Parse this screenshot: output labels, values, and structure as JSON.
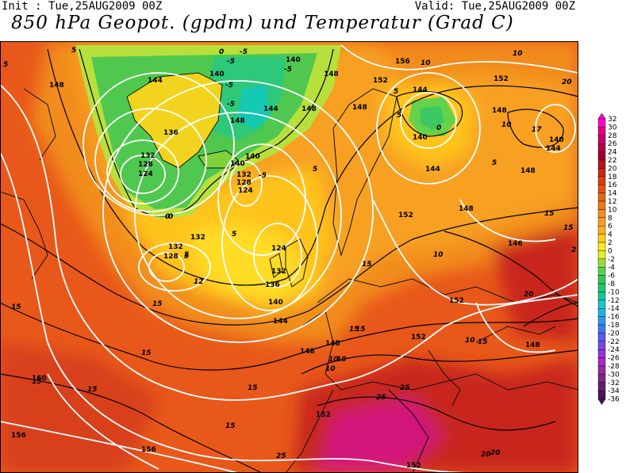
{
  "header": {
    "init": "Init : Tue,25AUG2009 00Z",
    "valid": "Valid: Tue,25AUG2009 00Z",
    "title": "850 hPa Geopot. (gpdm) und Temperatur (Grad C)"
  },
  "legend": {
    "ticks": [
      "32",
      "30",
      "28",
      "26",
      "24",
      "22",
      "20",
      "18",
      "16",
      "14",
      "12",
      "10",
      "8",
      "6",
      "4",
      "2",
      "0",
      "-2",
      "-4",
      "-6",
      "-8",
      "-10",
      "-12",
      "-14",
      "-16",
      "-18",
      "-20",
      "-22",
      "-24",
      "-26",
      "-28",
      "-30",
      "-32",
      "-34",
      "-36"
    ],
    "colors": [
      "#ff00cc",
      "#e6007e",
      "#c8006a",
      "#b40046",
      "#a00028",
      "#b4141e",
      "#c82814",
      "#dc3c0a",
      "#e6500a",
      "#eb6414",
      "#f07814",
      "#f58c1e",
      "#fa9b28",
      "#ffaf1e",
      "#ffcd14",
      "#ffe61e",
      "#e6f01e",
      "#96dc3c",
      "#5ad250",
      "#2dc85a",
      "#1ec873",
      "#14c896",
      "#14c8c8",
      "#1eb4e6",
      "#3296f0",
      "#3c78f0",
      "#5a5af0",
      "#7846e6",
      "#9632dc",
      "#aa28c8",
      "#9628a0",
      "#7d2887",
      "#641e6e",
      "#4b1455"
    ]
  },
  "geopotential_labels": [
    {
      "text": "148"
    },
    {
      "text": "144"
    },
    {
      "text": "140"
    },
    {
      "text": "136"
    },
    {
      "text": "132"
    },
    {
      "text": "128"
    },
    {
      "text": "124"
    },
    {
      "text": "140"
    },
    {
      "text": "148"
    },
    {
      "text": "144"
    },
    {
      "text": "140"
    },
    {
      "text": "132"
    },
    {
      "text": "128"
    },
    {
      "text": "124"
    },
    {
      "text": "140"
    },
    {
      "text": "148"
    },
    {
      "text": "152"
    },
    {
      "text": "156"
    },
    {
      "text": "152"
    },
    {
      "text": "148"
    },
    {
      "text": "144"
    },
    {
      "text": "140"
    },
    {
      "text": "148"
    },
    {
      "text": "144"
    },
    {
      "text": "152"
    },
    {
      "text": "148"
    },
    {
      "text": "146"
    },
    {
      "text": "132"
    },
    {
      "text": "128"
    },
    {
      "text": "132"
    },
    {
      "text": "124"
    },
    {
      "text": "132"
    },
    {
      "text": "136"
    },
    {
      "text": "140"
    },
    {
      "text": "144"
    },
    {
      "text": "148"
    },
    {
      "text": "148"
    },
    {
      "text": "152"
    },
    {
      "text": "152"
    },
    {
      "text": "148"
    },
    {
      "text": "148"
    },
    {
      "text": "144"
    },
    {
      "text": "140"
    },
    {
      "text": "148"
    },
    {
      "text": "160"
    },
    {
      "text": "156"
    },
    {
      "text": "156"
    },
    {
      "text": "152"
    },
    {
      "text": "152"
    }
  ],
  "temperature_labels": [
    {
      "text": "5"
    },
    {
      "text": "5"
    },
    {
      "text": "-5"
    },
    {
      "text": "-5"
    },
    {
      "text": "-5"
    },
    {
      "text": "-5"
    },
    {
      "text": "-5"
    },
    {
      "text": "0"
    },
    {
      "text": "0"
    },
    {
      "text": "5"
    },
    {
      "text": "10"
    },
    {
      "text": "10"
    },
    {
      "text": "20"
    },
    {
      "text": "5"
    },
    {
      "text": "0"
    },
    {
      "text": "5"
    },
    {
      "text": "10"
    },
    {
      "text": "17"
    },
    {
      "text": "5"
    },
    {
      "text": "5"
    },
    {
      "text": "0"
    },
    {
      "text": "5"
    },
    {
      "text": "10"
    },
    {
      "text": "15"
    },
    {
      "text": "-5"
    },
    {
      "text": "5"
    },
    {
      "text": "12"
    },
    {
      "text": "15"
    },
    {
      "text": "15"
    },
    {
      "text": "15"
    },
    {
      "text": "15"
    },
    {
      "text": "15"
    },
    {
      "text": "15"
    },
    {
      "text": "10"
    },
    {
      "text": "20"
    },
    {
      "text": "15"
    },
    {
      "text": "15"
    },
    {
      "text": "10"
    },
    {
      "text": "20"
    },
    {
      "text": "15"
    },
    {
      "text": "10"
    },
    {
      "text": "25"
    },
    {
      "text": "25"
    },
    {
      "text": "15"
    },
    {
      "text": "15"
    },
    {
      "text": "25"
    },
    {
      "text": "20"
    },
    {
      "text": "2"
    },
    {
      "text": "15"
    },
    {
      "text": "10"
    }
  ]
}
